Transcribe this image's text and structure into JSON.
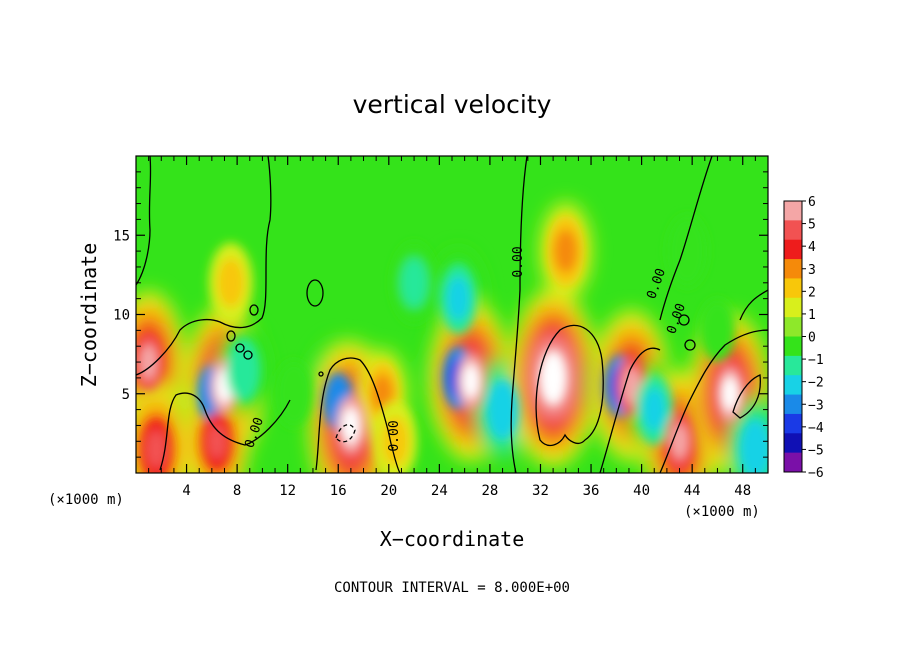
{
  "chart_data": {
    "type": "heatmap",
    "title": "vertical velocity",
    "xlabel": "X−coordinate",
    "ylabel": "Z−coordinate",
    "x_unit_label": "(×1000 m)",
    "x_unit_label_right": "(×1000 m)",
    "footer": "CONTOUR INTERVAL = 8.000E+00",
    "xlim": [
      0,
      50
    ],
    "ylim": [
      0,
      20
    ],
    "x_ticks": [
      4,
      8,
      12,
      16,
      20,
      24,
      28,
      32,
      36,
      40,
      44,
      48
    ],
    "y_ticks": [
      5,
      10,
      15
    ],
    "colorbar": {
      "levels": [
        6,
        5,
        4,
        3,
        2,
        1,
        0,
        -1,
        -2,
        -3,
        -4,
        -5,
        -6
      ],
      "colors": [
        "#f4a6a6",
        "#f25252",
        "#ee1c1c",
        "#f58a0a",
        "#f8c70a",
        "#d8ef1c",
        "#8ee82a",
        "#34e31a",
        "#28e89a",
        "#18d2e6",
        "#1a8ae8",
        "#1a3ae6",
        "#1010b4",
        "#7a10a8"
      ]
    },
    "contour_labels": [
      "0.00",
      "0.00",
      "0.00",
      "0.00",
      "0.00"
    ],
    "features": [
      {
        "x": 1,
        "z": 7,
        "w": 5.5
      },
      {
        "x": 1.6,
        "z": 1.5,
        "w": 5.0
      },
      {
        "x": 6,
        "z": 5,
        "w": -4.5
      },
      {
        "x": 7,
        "z": 5.5,
        "w": 6.5
      },
      {
        "x": 6.4,
        "z": 2,
        "w": 4.5
      },
      {
        "x": 7.5,
        "z": 12,
        "w": 2.0
      },
      {
        "x": 8.5,
        "z": 6.5,
        "w": -2.5
      },
      {
        "x": 12.5,
        "z": 5,
        "w": -1.2
      },
      {
        "x": 16,
        "z": 4.5,
        "w": -4.5
      },
      {
        "x": 17,
        "z": 3,
        "w": 7.0
      },
      {
        "x": 19.5,
        "z": 5,
        "w": 2.5
      },
      {
        "x": 20.5,
        "z": 2,
        "w": 2.0
      },
      {
        "x": 22,
        "z": 12,
        "w": -2.0
      },
      {
        "x": 25.5,
        "z": 11,
        "w": -3.0
      },
      {
        "x": 25.5,
        "z": 6,
        "w": -5.0
      },
      {
        "x": 26.5,
        "z": 5.8,
        "w": 6.5
      },
      {
        "x": 29,
        "z": 4,
        "w": -3.5
      },
      {
        "x": 33,
        "z": 6,
        "w": 7.5
      },
      {
        "x": 34,
        "z": 14,
        "w": 3.0
      },
      {
        "x": 38.3,
        "z": 5.5,
        "w": -5.0
      },
      {
        "x": 39.2,
        "z": 5.5,
        "w": 6.0
      },
      {
        "x": 41,
        "z": 4,
        "w": -3.0
      },
      {
        "x": 43,
        "z": 2,
        "w": 5.5
      },
      {
        "x": 43.6,
        "z": 14,
        "w": -1.5
      },
      {
        "x": 47,
        "z": 5,
        "w": 6.5
      },
      {
        "x": 46,
        "z": 9,
        "w": -1.0
      },
      {
        "x": 49,
        "z": 1.5,
        "w": -3.5
      }
    ]
  }
}
